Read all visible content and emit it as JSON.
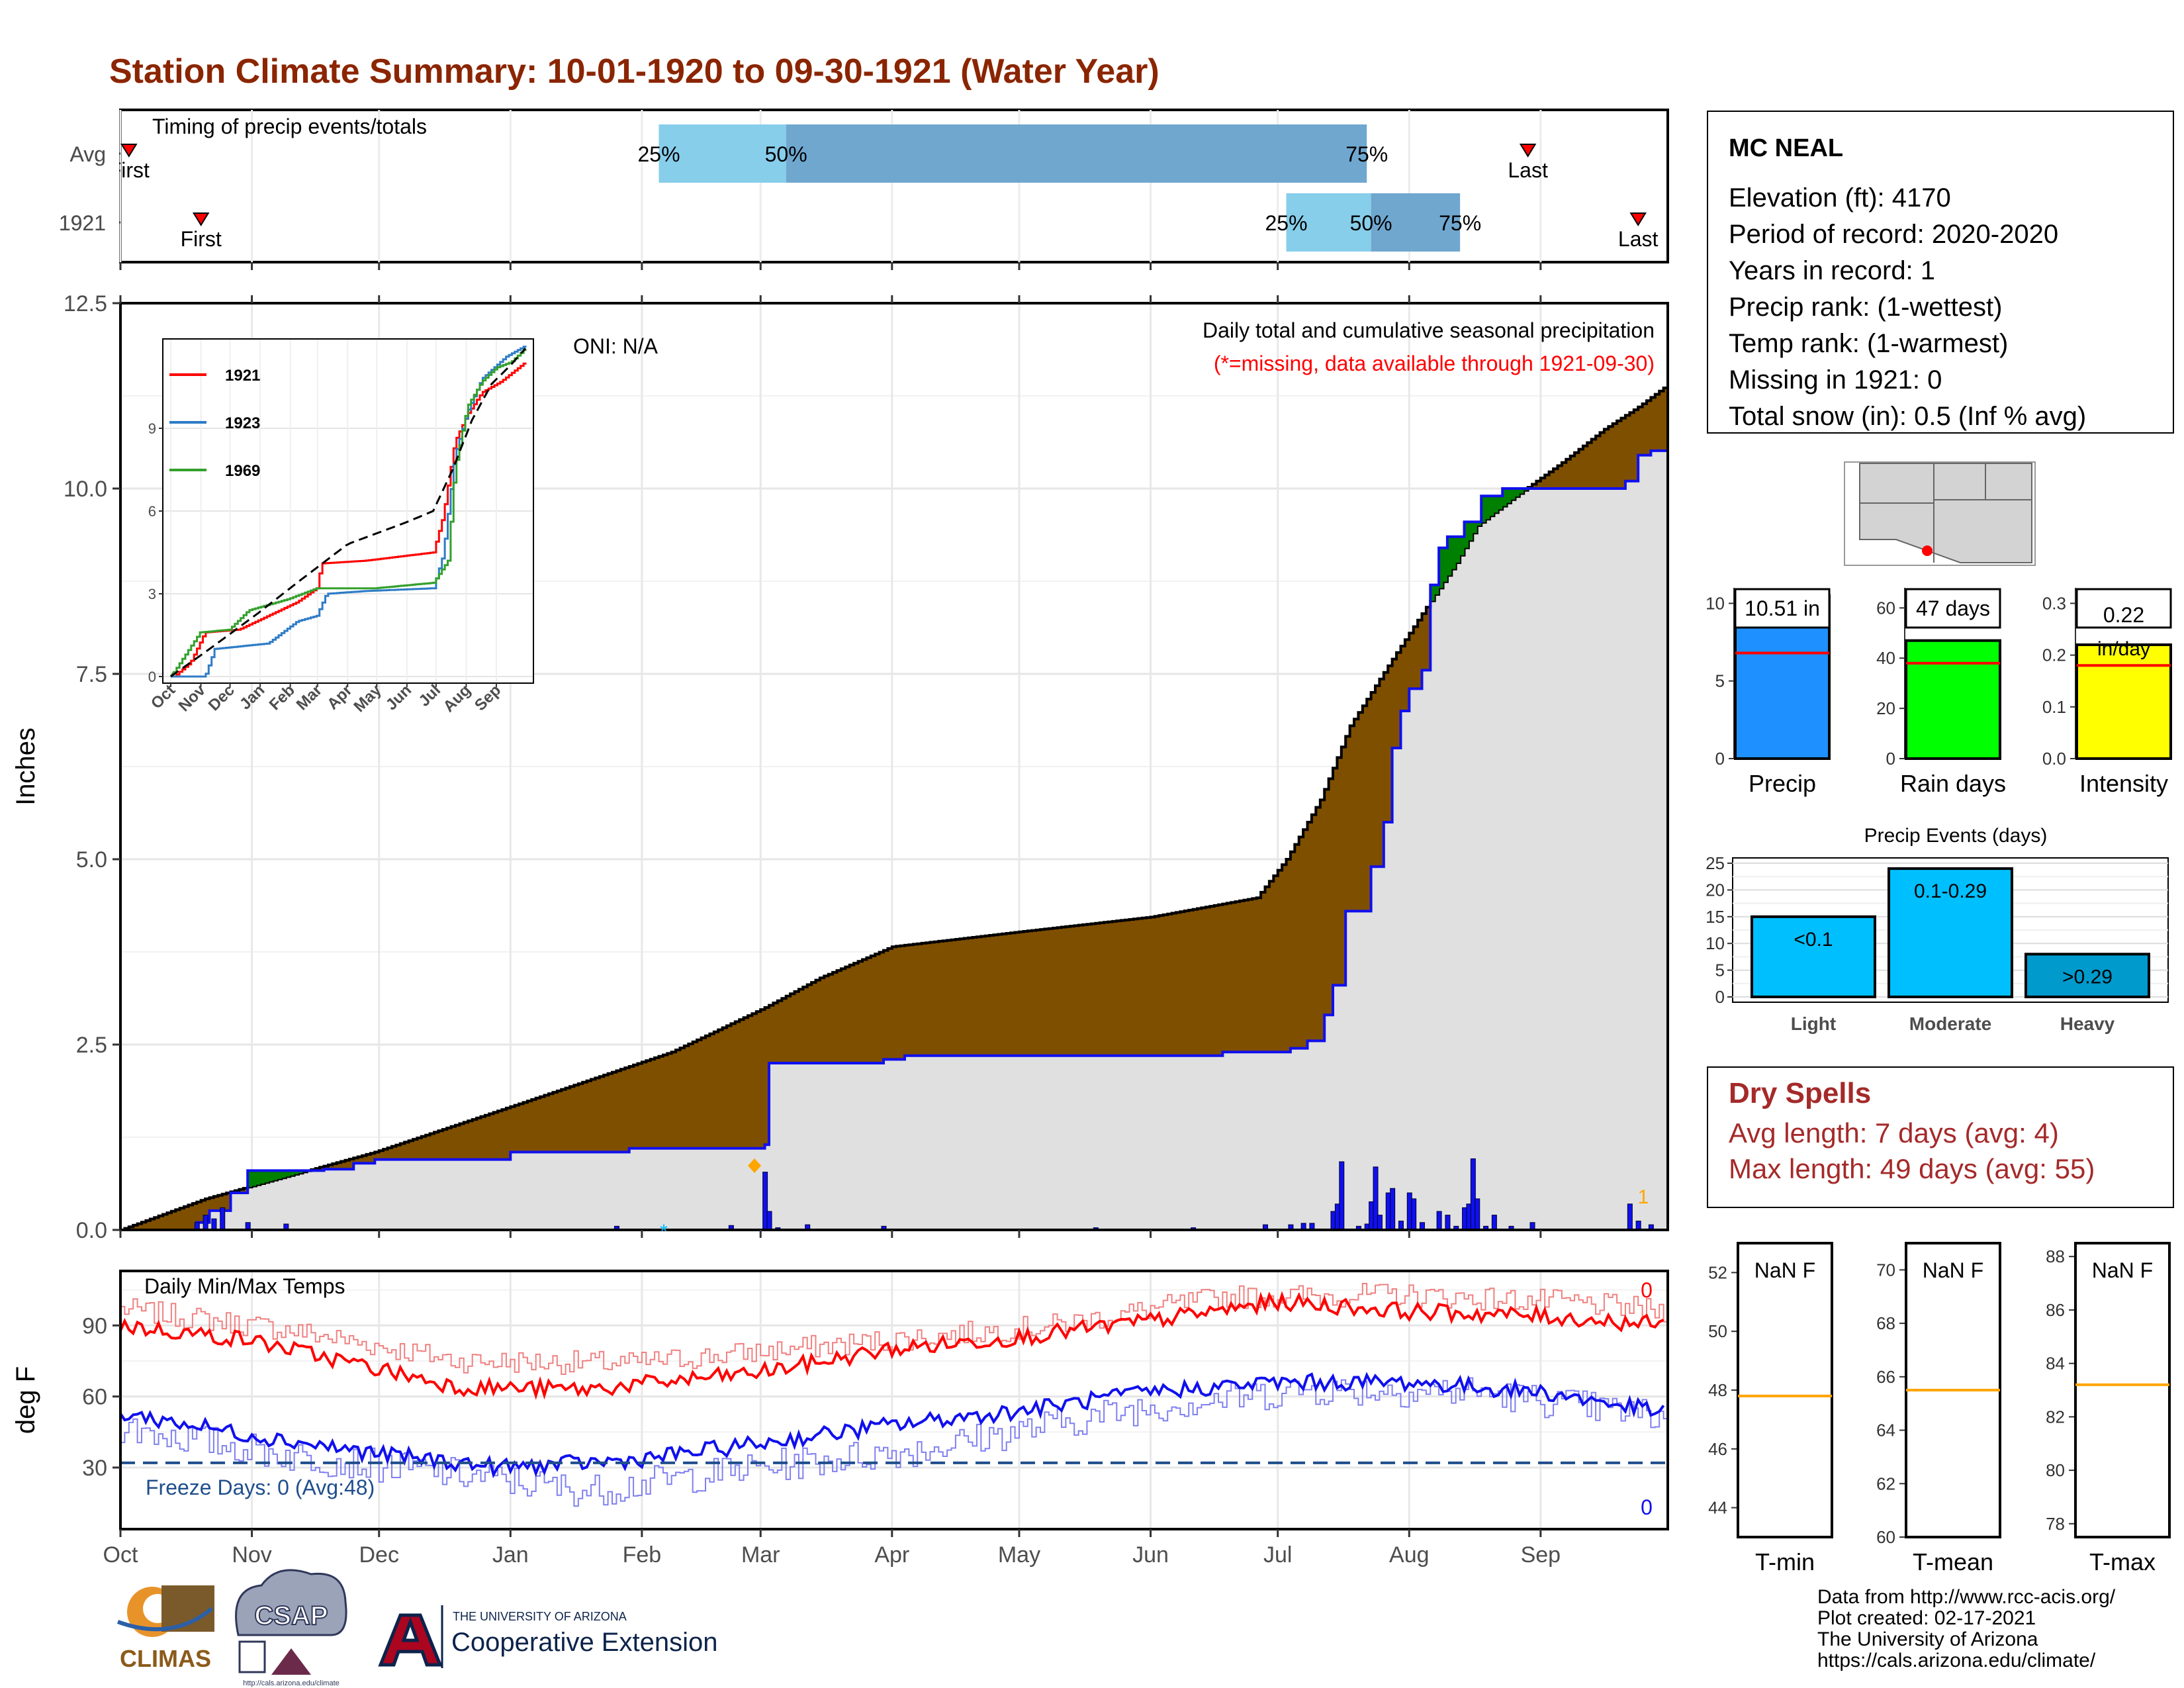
{
  "title": "Station Climate Summary: 10-01-1920 to 09-30-1921 (Water Year)",
  "colors": {
    "title": "#8B2500",
    "brown": "#7f4f00",
    "lightgray": "#e0e0e0",
    "blue": "#1010ee",
    "red": "#ff0000",
    "q1": "#87ceeb",
    "q2": "#6fa7cf",
    "green": "#008000",
    "cyan": "#00bfff",
    "dkcyan": "#009acd",
    "yellow": "#ffff00",
    "lime": "#00ff00",
    "precipBlue": "#1e90ff",
    "orange": "#ffa500",
    "dryspell": "#a52a2a",
    "freeze": "#1f4e8c"
  },
  "months": [
    "Oct",
    "Nov",
    "Dec",
    "Jan",
    "Feb",
    "Mar",
    "Apr",
    "May",
    "Jun",
    "Jul",
    "Aug",
    "Sep"
  ],
  "timing": {
    "label": "Timing of precip events/totals",
    "rows": [
      {
        "name": "Avg",
        "first": "First",
        "last": "Last",
        "first_day": 2,
        "last_day": 332,
        "p25": 127,
        "p50": 157,
        "p75": 294,
        "p25_label": "25%",
        "p50_label": "50%",
        "p75_label": "75%"
      },
      {
        "name": "1921",
        "first": "First",
        "last": "Last",
        "first_day": 19,
        "last_day": 358,
        "p25": 275,
        "p50": 295,
        "p75": 316,
        "p25_label": "25%",
        "p50_label": "50%",
        "p75_label": "75%"
      }
    ]
  },
  "precip_panel": {
    "ylabel": "Inches",
    "yticks": [
      "0.0",
      "2.5",
      "5.0",
      "7.5",
      "10.0",
      "12.5"
    ],
    "oni": "ONI: N/A",
    "note1": "Daily total and cumulative seasonal precipitation",
    "note2": "(*=missing, data available through 1921-09-30)",
    "missing_count": "1",
    "ymax": 12.5
  },
  "inset": {
    "legend": [
      "1921",
      "1923",
      "1969"
    ],
    "yticks": [
      "0",
      "3",
      "6",
      "9"
    ],
    "months": [
      "Oct",
      "Nov",
      "Dec",
      "Jan",
      "Feb",
      "Mar",
      "Apr",
      "May",
      "Jun",
      "Jul",
      "Aug",
      "Sep"
    ]
  },
  "temp_panel": {
    "ylabel": "deg F",
    "label": "Daily Min/Max Temps",
    "freeze": "Freeze Days: 0 (Avg:48)",
    "count_top": "0",
    "count_bottom": "0",
    "yticks": [
      "30",
      "60",
      "90"
    ],
    "freeze_line": 32
  },
  "station": {
    "name": "MC NEAL",
    "lines": [
      "Elevation (ft): 4170",
      "Period of record: 2020-2020",
      "Years in record: 1",
      "Precip rank:  (1-wettest)",
      "Temp rank:  (1-warmest)",
      "Missing in 1921: 0",
      "Total snow (in): 0.5 (Inf % avg)"
    ]
  },
  "bars": [
    {
      "label": "10.51 in",
      "caption": "Precip",
      "value": 10.51,
      "avg": 6.8,
      "ymax": 11,
      "ticks": [
        "0",
        "5",
        "10"
      ],
      "tickvals": [
        0,
        5,
        10
      ]
    },
    {
      "label": "47 days",
      "caption": "Rain days",
      "value": 47,
      "avg": 38,
      "ymax": 68,
      "ticks": [
        "0",
        "20",
        "40",
        "60"
      ],
      "tickvals": [
        0,
        20,
        40,
        60
      ]
    },
    {
      "label": "0.22 in/day",
      "label_a": "0.22",
      "label_b": "in/day",
      "caption": "Intensity",
      "value": 0.22,
      "avg": 0.18,
      "ymax": 0.33,
      "ticks": [
        "0.0",
        "0.1",
        "0.2",
        "0.3"
      ],
      "tickvals": [
        0,
        0.1,
        0.2,
        0.3
      ]
    }
  ],
  "events": {
    "title": "Precip Events (days)",
    "yticks": [
      "0",
      "5",
      "10",
      "15",
      "20",
      "25"
    ],
    "items": [
      {
        "name": "Light",
        "label": "<0.1",
        "value": 15
      },
      {
        "name": "Moderate",
        "label": "0.1-0.29",
        "value": 24
      },
      {
        "name": "Heavy",
        "label": ">0.29",
        "value": 8
      }
    ]
  },
  "dry": {
    "title": "Dry Spells",
    "line1": "Avg length: 7 days (avg: 4)",
    "line2": "Max length: 49 days (avg: 55)"
  },
  "tempboxes": [
    {
      "label": "NaN F",
      "caption": "T-min",
      "ticks": [
        "44",
        "46",
        "48",
        "50",
        "52"
      ],
      "lo": 43,
      "hi": 53,
      "avg": 47.8
    },
    {
      "label": "NaN F",
      "caption": "T-mean",
      "ticks": [
        "60",
        "62",
        "64",
        "66",
        "68",
        "70"
      ],
      "lo": 60,
      "hi": 71,
      "avg": 65.5
    },
    {
      "label": "NaN F",
      "caption": "T-max",
      "ticks": [
        "78",
        "80",
        "82",
        "84",
        "86",
        "88"
      ],
      "lo": 77.5,
      "hi": 88.5,
      "avg": 83.2
    }
  ],
  "logos": {
    "climas": "CLIMAS",
    "csap": "CSAP",
    "csap_url": "http://cals.arizona.edu/climate",
    "ua_small": "THE UNIVERSITY OF ARIZONA",
    "ua_big": "Cooperative Extension"
  },
  "credits": [
    "Data from http://www.rcc-acis.org/",
    "Plot created: 02-17-2021",
    "The University of Arizona",
    "https://cals.arizona.edu/climate/"
  ]
}
